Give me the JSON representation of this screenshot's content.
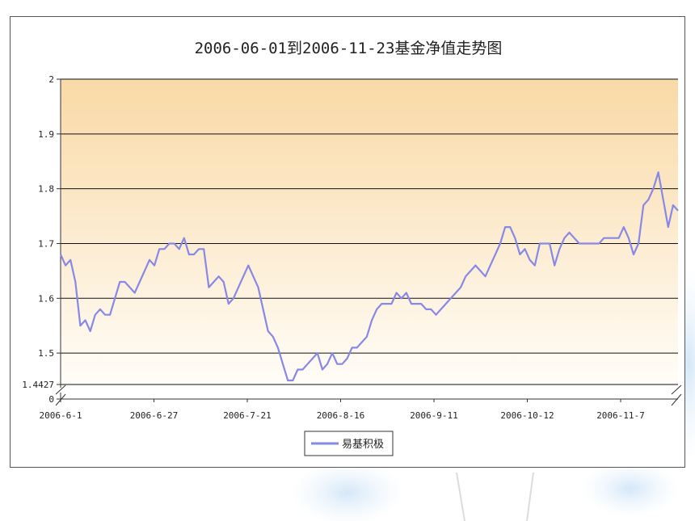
{
  "colors": {
    "plot_bg_top": "#f9d9a6",
    "plot_bg_bottom": "#fffdf8",
    "series_line": "#8888e6",
    "grid": "#111111"
  },
  "chart_data": {
    "type": "line",
    "title": "2006-06-01到2006-11-23基金净值走势图",
    "xlabel": "",
    "ylabel": "",
    "x_ticks": [
      "2006-6-1",
      "2006-6-27",
      "2006-7-21",
      "2006-8-16",
      "2006-9-11",
      "2006-10-12",
      "2006-11-7"
    ],
    "y_ticks": [
      "0",
      "1.4427",
      "1.5",
      "1.6",
      "1.7",
      "1.8",
      "1.9",
      "2"
    ],
    "ylim": [
      1.4427,
      2.0
    ],
    "axis_break": true,
    "grid": true,
    "legend": "bottom",
    "series": [
      {
        "name": "易基积极",
        "values": [
          1.68,
          1.66,
          1.67,
          1.63,
          1.55,
          1.56,
          1.54,
          1.57,
          1.58,
          1.57,
          1.57,
          1.6,
          1.63,
          1.63,
          1.62,
          1.61,
          1.63,
          1.65,
          1.67,
          1.66,
          1.69,
          1.69,
          1.7,
          1.7,
          1.69,
          1.71,
          1.68,
          1.68,
          1.69,
          1.69,
          1.62,
          1.63,
          1.64,
          1.63,
          1.59,
          1.6,
          1.62,
          1.64,
          1.66,
          1.64,
          1.62,
          1.58,
          1.54,
          1.53,
          1.51,
          1.48,
          1.45,
          1.45,
          1.47,
          1.47,
          1.48,
          1.49,
          1.5,
          1.47,
          1.48,
          1.5,
          1.48,
          1.48,
          1.49,
          1.51,
          1.51,
          1.52,
          1.53,
          1.56,
          1.58,
          1.59,
          1.59,
          1.59,
          1.61,
          1.6,
          1.61,
          1.59,
          1.59,
          1.59,
          1.58,
          1.58,
          1.57,
          1.58,
          1.59,
          1.6,
          1.61,
          1.62,
          1.64,
          1.65,
          1.66,
          1.65,
          1.64,
          1.66,
          1.68,
          1.7,
          1.73,
          1.73,
          1.71,
          1.68,
          1.69,
          1.67,
          1.66,
          1.7,
          1.7,
          1.7,
          1.66,
          1.69,
          1.71,
          1.72,
          1.71,
          1.7,
          1.7,
          1.7,
          1.7,
          1.7,
          1.71,
          1.71,
          1.71,
          1.71,
          1.73,
          1.71,
          1.68,
          1.7,
          1.77,
          1.78,
          1.8,
          1.83,
          1.78,
          1.73,
          1.77,
          1.76
        ]
      }
    ]
  }
}
